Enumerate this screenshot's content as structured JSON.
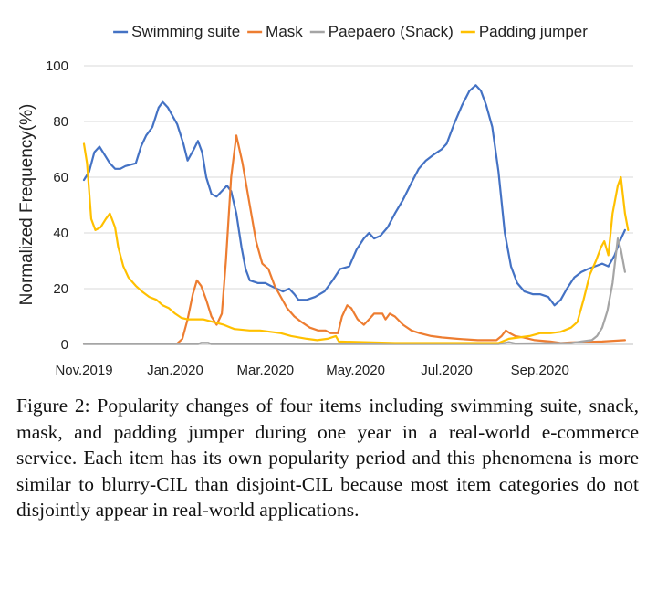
{
  "chart_data": {
    "type": "line",
    "title": "",
    "xlabel": "",
    "ylabel": "Normalized Frequency(%)",
    "ylim": [
      0,
      100
    ],
    "xlim": [
      0,
      53
    ],
    "yticks": [
      "0",
      "20",
      "40",
      "60",
      "80",
      "100"
    ],
    "xticks": [
      {
        "label": "Nov.2019",
        "x": 0
      },
      {
        "label": "Jan.2020",
        "x": 8.8
      },
      {
        "label": "Mar.2020",
        "x": 17.5
      },
      {
        "label": "May.2020",
        "x": 26.2
      },
      {
        "label": "Jul.2020",
        "x": 35
      },
      {
        "label": "Sep.2020",
        "x": 44
      }
    ],
    "legend_position": "top",
    "series": [
      {
        "name": "Swimming suite",
        "color": "#4472C4",
        "points": [
          [
            0,
            59
          ],
          [
            0.5,
            62
          ],
          [
            1,
            69
          ],
          [
            1.5,
            71
          ],
          [
            2,
            68
          ],
          [
            2.5,
            65
          ],
          [
            3,
            63
          ],
          [
            3.5,
            63
          ],
          [
            4,
            64
          ],
          [
            5,
            65
          ],
          [
            5.5,
            71
          ],
          [
            6,
            75
          ],
          [
            6.6,
            78
          ],
          [
            7.2,
            85
          ],
          [
            7.6,
            87
          ],
          [
            8.1,
            85
          ],
          [
            9,
            79
          ],
          [
            9.6,
            72
          ],
          [
            10,
            66
          ],
          [
            10.6,
            70
          ],
          [
            11,
            73
          ],
          [
            11.4,
            69
          ],
          [
            11.8,
            60
          ],
          [
            12.3,
            54
          ],
          [
            12.8,
            53
          ],
          [
            13.3,
            55
          ],
          [
            13.8,
            57
          ],
          [
            14.2,
            55
          ],
          [
            14.7,
            47
          ],
          [
            15.2,
            35
          ],
          [
            15.6,
            27
          ],
          [
            16,
            23
          ],
          [
            16.8,
            22
          ],
          [
            17.5,
            22
          ],
          [
            18,
            21
          ],
          [
            18.6,
            20
          ],
          [
            19.2,
            19
          ],
          [
            19.8,
            20
          ],
          [
            20.3,
            18
          ],
          [
            20.7,
            16
          ],
          [
            21.5,
            16
          ],
          [
            22.3,
            17
          ],
          [
            23.2,
            19
          ],
          [
            24,
            23
          ],
          [
            24.7,
            27
          ],
          [
            25.6,
            28
          ],
          [
            26.3,
            34
          ],
          [
            27,
            38
          ],
          [
            27.5,
            40
          ],
          [
            28,
            38
          ],
          [
            28.6,
            39
          ],
          [
            29.3,
            42
          ],
          [
            30,
            47
          ],
          [
            30.8,
            52
          ],
          [
            31.6,
            58
          ],
          [
            32.3,
            63
          ],
          [
            33,
            66
          ],
          [
            33.7,
            68
          ],
          [
            34.5,
            70
          ],
          [
            35,
            72
          ],
          [
            35.7,
            79
          ],
          [
            36.5,
            86
          ],
          [
            37.2,
            91
          ],
          [
            37.8,
            93
          ],
          [
            38.3,
            91
          ],
          [
            38.8,
            86
          ],
          [
            39.4,
            78
          ],
          [
            40,
            62
          ],
          [
            40.6,
            40
          ],
          [
            41.2,
            28
          ],
          [
            41.8,
            22
          ],
          [
            42.5,
            19
          ],
          [
            43.3,
            18
          ],
          [
            44,
            18
          ],
          [
            44.8,
            17
          ],
          [
            45.4,
            14
          ],
          [
            46,
            16
          ],
          [
            46.6,
            20
          ],
          [
            47.3,
            24
          ],
          [
            48,
            26
          ],
          [
            48.6,
            27
          ],
          [
            49.3,
            28
          ],
          [
            50,
            29
          ],
          [
            50.6,
            28
          ],
          [
            51.2,
            32
          ],
          [
            51.7,
            37
          ],
          [
            52.2,
            41
          ]
        ]
      },
      {
        "name": "Mask",
        "color": "#ED7D31",
        "points": [
          [
            0,
            0.3
          ],
          [
            9,
            0.3
          ],
          [
            9.5,
            2
          ],
          [
            10,
            9
          ],
          [
            10.5,
            18
          ],
          [
            10.9,
            23
          ],
          [
            11.3,
            21
          ],
          [
            11.8,
            16
          ],
          [
            12.3,
            10
          ],
          [
            12.8,
            7
          ],
          [
            13.3,
            11
          ],
          [
            13.7,
            30
          ],
          [
            14.2,
            60
          ],
          [
            14.7,
            75
          ],
          [
            15.3,
            65
          ],
          [
            16,
            50
          ],
          [
            16.6,
            37
          ],
          [
            17.2,
            29
          ],
          [
            17.8,
            27
          ],
          [
            18.4,
            21
          ],
          [
            19,
            17
          ],
          [
            19.6,
            13
          ],
          [
            20.3,
            10
          ],
          [
            21,
            8
          ],
          [
            21.8,
            6
          ],
          [
            22.6,
            5
          ],
          [
            23.3,
            5
          ],
          [
            23.8,
            4
          ],
          [
            24.5,
            4
          ],
          [
            24.9,
            10
          ],
          [
            25.4,
            14
          ],
          [
            25.8,
            13
          ],
          [
            26.4,
            9
          ],
          [
            27,
            7
          ],
          [
            27.5,
            9
          ],
          [
            28,
            11
          ],
          [
            28.4,
            11
          ],
          [
            28.8,
            11
          ],
          [
            29.1,
            9
          ],
          [
            29.5,
            11
          ],
          [
            30,
            10
          ],
          [
            30.8,
            7
          ],
          [
            31.6,
            5
          ],
          [
            32.4,
            4
          ],
          [
            33.5,
            3
          ],
          [
            34.5,
            2.5
          ],
          [
            36,
            2
          ],
          [
            38,
            1.5
          ],
          [
            39.8,
            1.5
          ],
          [
            40.3,
            3
          ],
          [
            40.7,
            5
          ],
          [
            41.1,
            4
          ],
          [
            41.6,
            3
          ],
          [
            42.4,
            2.5
          ],
          [
            43.5,
            1.5
          ],
          [
            45,
            1
          ],
          [
            46,
            0.5
          ],
          [
            47,
            0.7
          ],
          [
            50,
            1
          ],
          [
            52.2,
            1.5
          ]
        ]
      },
      {
        "name": "Paepaero (Snack)",
        "color": "#A5A5A5",
        "points": [
          [
            0,
            0.1
          ],
          [
            11,
            0.1
          ],
          [
            11.3,
            0.6
          ],
          [
            12,
            0.6
          ],
          [
            12.3,
            0.1
          ],
          [
            40,
            0.1
          ],
          [
            41,
            0.8
          ],
          [
            41.6,
            0.3
          ],
          [
            47,
            0.5
          ],
          [
            48,
            1
          ],
          [
            49,
            1.5
          ],
          [
            49.5,
            3
          ],
          [
            50,
            6
          ],
          [
            50.5,
            12
          ],
          [
            51,
            22
          ],
          [
            51.5,
            38
          ],
          [
            51.8,
            34
          ],
          [
            52.2,
            26
          ]
        ]
      },
      {
        "name": "Padding jumper",
        "color": "#FFC000",
        "points": [
          [
            0,
            72
          ],
          [
            0.3,
            65
          ],
          [
            0.7,
            45
          ],
          [
            1.1,
            41
          ],
          [
            1.6,
            42
          ],
          [
            2.1,
            45
          ],
          [
            2.5,
            47
          ],
          [
            3,
            42
          ],
          [
            3.3,
            35
          ],
          [
            3.8,
            28
          ],
          [
            4.3,
            24
          ],
          [
            5,
            21
          ],
          [
            5.6,
            19
          ],
          [
            6.3,
            17
          ],
          [
            7,
            16
          ],
          [
            7.6,
            14
          ],
          [
            8.2,
            13
          ],
          [
            8.8,
            11
          ],
          [
            9.4,
            9.5
          ],
          [
            10,
            9
          ],
          [
            11.5,
            9
          ],
          [
            12.5,
            8
          ],
          [
            13.5,
            7
          ],
          [
            14.5,
            5.5
          ],
          [
            16,
            5
          ],
          [
            17,
            5
          ],
          [
            18,
            4.5
          ],
          [
            19,
            4
          ],
          [
            20,
            3
          ],
          [
            21.5,
            2
          ],
          [
            22.5,
            1.5
          ],
          [
            23.5,
            2
          ],
          [
            24.3,
            3
          ],
          [
            24.6,
            1
          ],
          [
            30,
            0.5
          ],
          [
            40,
            0.5
          ],
          [
            41,
            2
          ],
          [
            42,
            2.5
          ],
          [
            43,
            3
          ],
          [
            44,
            4
          ],
          [
            45,
            4
          ],
          [
            46,
            4.5
          ],
          [
            47,
            6
          ],
          [
            47.6,
            8
          ],
          [
            48.2,
            16
          ],
          [
            48.8,
            25
          ],
          [
            49.4,
            30
          ],
          [
            49.9,
            35
          ],
          [
            50.2,
            37
          ],
          [
            50.6,
            32
          ],
          [
            51,
            47
          ],
          [
            51.5,
            57
          ],
          [
            51.8,
            60
          ],
          [
            52.2,
            47
          ],
          [
            52.5,
            41
          ]
        ]
      }
    ]
  },
  "caption": "Figure 2: Popularity changes of four items including swimming suite, snack, mask, and padding jumper during one year in a real-world e-commerce service. Each item has its own popularity period and this phenomena is more similar to blurry-CIL than disjoint-CIL because most item categories do not disjointly appear in real-world applications."
}
